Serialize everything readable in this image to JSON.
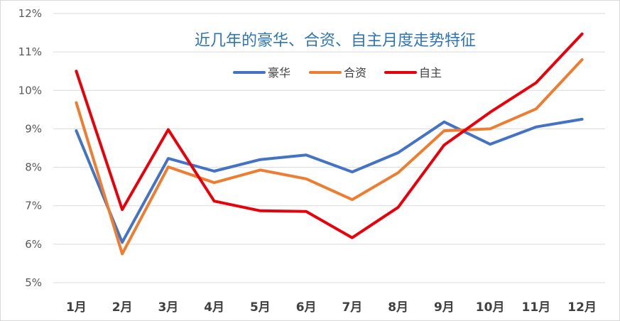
{
  "chart_data": {
    "type": "line",
    "title": "近几年的豪华、合资、自主月度走势特征",
    "xlabel": "",
    "ylabel": "",
    "categories": [
      "1月",
      "2月",
      "3月",
      "4月",
      "5月",
      "6月",
      "7月",
      "8月",
      "9月",
      "10月",
      "11月",
      "12月"
    ],
    "y_ticks": [
      "5%",
      "6%",
      "7%",
      "8%",
      "9%",
      "10%",
      "11%",
      "12%"
    ],
    "ylim": [
      5,
      12
    ],
    "grid": true,
    "legend_position": "top",
    "series": [
      {
        "name": "豪华",
        "color": "#4472c4",
        "values": [
          8.95,
          6.05,
          8.23,
          7.9,
          8.2,
          8.32,
          7.88,
          8.38,
          9.18,
          8.6,
          9.05,
          9.25
        ]
      },
      {
        "name": "合资",
        "color": "#ed7d31",
        "values": [
          9.68,
          5.75,
          8.01,
          7.6,
          7.93,
          7.7,
          7.16,
          7.86,
          8.95,
          9.0,
          9.52,
          10.8
        ]
      },
      {
        "name": "自主",
        "color": "#e8000b",
        "values": [
          10.5,
          6.9,
          8.98,
          7.12,
          6.87,
          6.85,
          6.17,
          6.96,
          8.58,
          9.43,
          10.2,
          11.47
        ]
      }
    ]
  }
}
